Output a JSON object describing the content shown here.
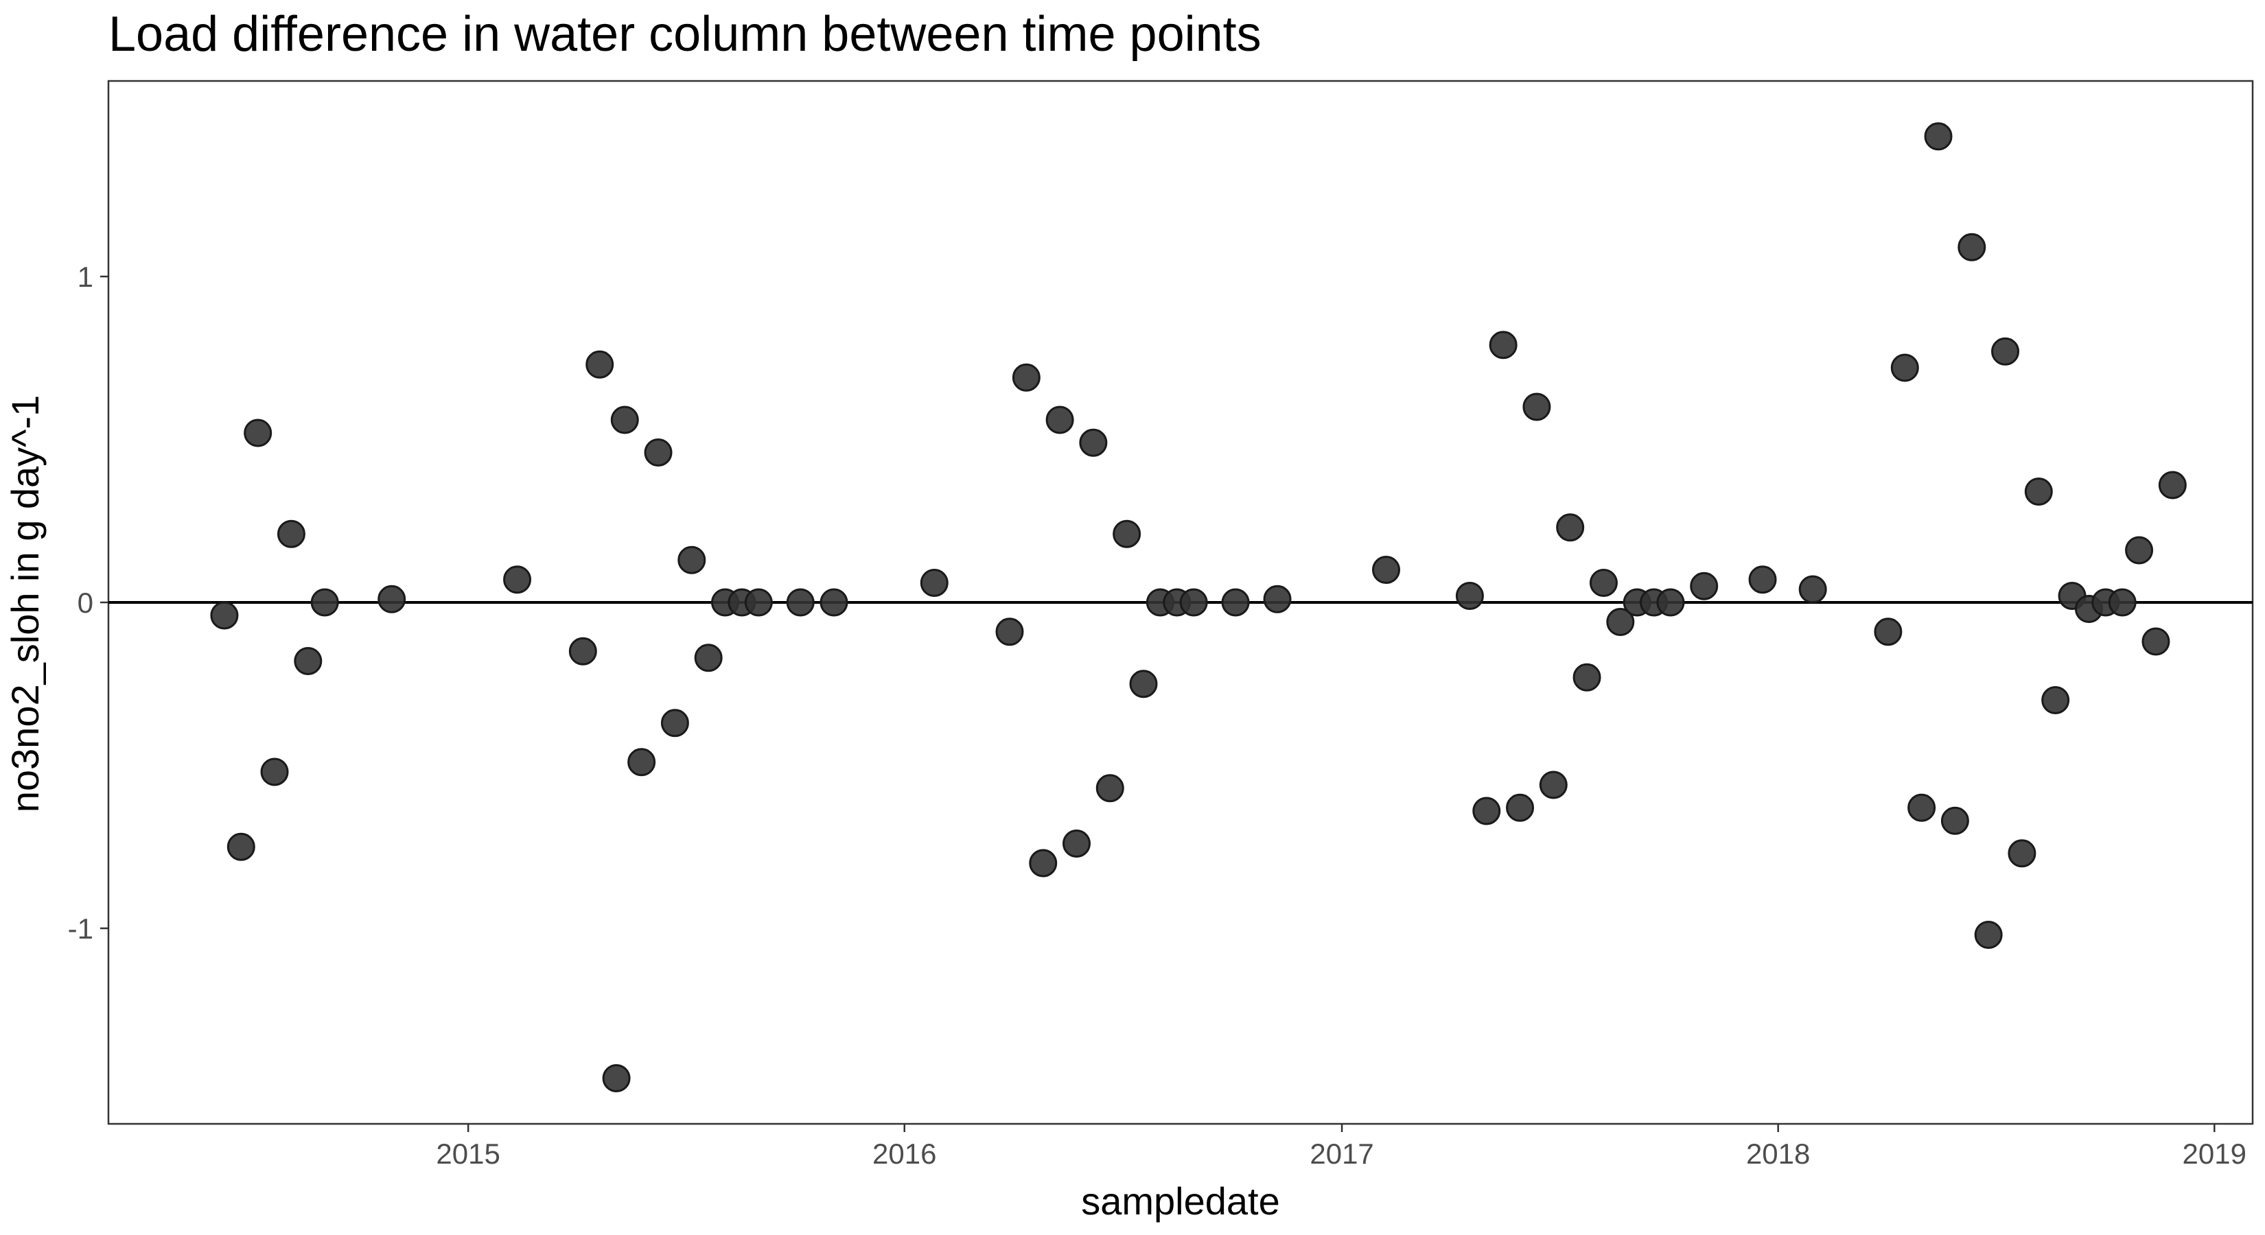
{
  "chart_data": {
    "type": "scatter",
    "title": "Load difference in water column between time points",
    "xlabel": "sampledate",
    "ylabel": "no3no2_sloh in g day^-1",
    "x_ticks": [
      "2015",
      "2016",
      "2017",
      "2018",
      "2019"
    ],
    "y_ticks": [
      -1,
      0,
      1
    ],
    "y_tick_labels": [
      "-1",
      "0",
      "1"
    ],
    "xlim": [
      "2014-03-06",
      "2019-02-02"
    ],
    "ylim": [
      -1.6,
      1.6
    ],
    "reference_line_y": 0,
    "grid": false,
    "point_color": "#333333",
    "point_opacity": 0.9,
    "series": [
      {
        "x": [
          "2014-06-11",
          "2014-06-25",
          "2014-07-09",
          "2014-07-23",
          "2014-08-06",
          "2014-08-20",
          "2014-09-03",
          "2014-10-29",
          "2015-02-11",
          "2015-04-07",
          "2015-04-21",
          "2015-05-05",
          "2015-05-12",
          "2015-05-26",
          "2015-06-09",
          "2015-06-23",
          "2015-07-07",
          "2015-07-21",
          "2015-08-04",
          "2015-08-18",
          "2015-09-01",
          "2015-10-06",
          "2015-11-03",
          "2016-01-26",
          "2016-03-29",
          "2016-04-12",
          "2016-04-26",
          "2016-05-10",
          "2016-05-24",
          "2016-06-07",
          "2016-06-21",
          "2016-07-05",
          "2016-07-19",
          "2016-08-02",
          "2016-08-16",
          "2016-08-30",
          "2016-10-04",
          "2016-11-08",
          "2017-02-07",
          "2017-04-18",
          "2017-05-02",
          "2017-05-16",
          "2017-05-30",
          "2017-06-13",
          "2017-06-27",
          "2017-07-11",
          "2017-07-25",
          "2017-08-08",
          "2017-08-22",
          "2017-09-05",
          "2017-09-19",
          "2017-10-03",
          "2017-10-31",
          "2017-12-19",
          "2018-01-30",
          "2018-04-03",
          "2018-04-17",
          "2018-05-01",
          "2018-05-15",
          "2018-05-29",
          "2018-06-12",
          "2018-06-26",
          "2018-07-10",
          "2018-07-24",
          "2018-08-07",
          "2018-08-21",
          "2018-09-04",
          "2018-09-18",
          "2018-10-02",
          "2018-10-16",
          "2018-10-30",
          "2018-11-13",
          "2018-11-27"
        ],
        "y": [
          -0.04,
          -0.75,
          0.52,
          -0.52,
          0.21,
          -0.18,
          0.0,
          0.01,
          0.07,
          -0.15,
          0.73,
          -1.46,
          0.56,
          -0.49,
          0.46,
          -0.37,
          0.13,
          -0.17,
          0.0,
          0.0,
          0.0,
          0.0,
          0.0,
          0.06,
          -0.09,
          0.69,
          -0.8,
          0.56,
          -0.74,
          0.49,
          -0.57,
          0.21,
          -0.25,
          0.0,
          0.0,
          0.0,
          0.0,
          0.01,
          0.1,
          0.02,
          -0.64,
          0.79,
          -0.63,
          0.6,
          -0.56,
          0.23,
          -0.23,
          0.06,
          -0.06,
          0.0,
          0.0,
          0.0,
          0.05,
          0.07,
          0.04,
          -0.09,
          0.72,
          -0.63,
          1.43,
          -0.67,
          1.09,
          -1.02,
          0.77,
          -0.77,
          0.34,
          -0.3,
          0.02,
          -0.02,
          0.0,
          0.0,
          0.16,
          -0.12,
          0.36
        ]
      }
    ]
  }
}
